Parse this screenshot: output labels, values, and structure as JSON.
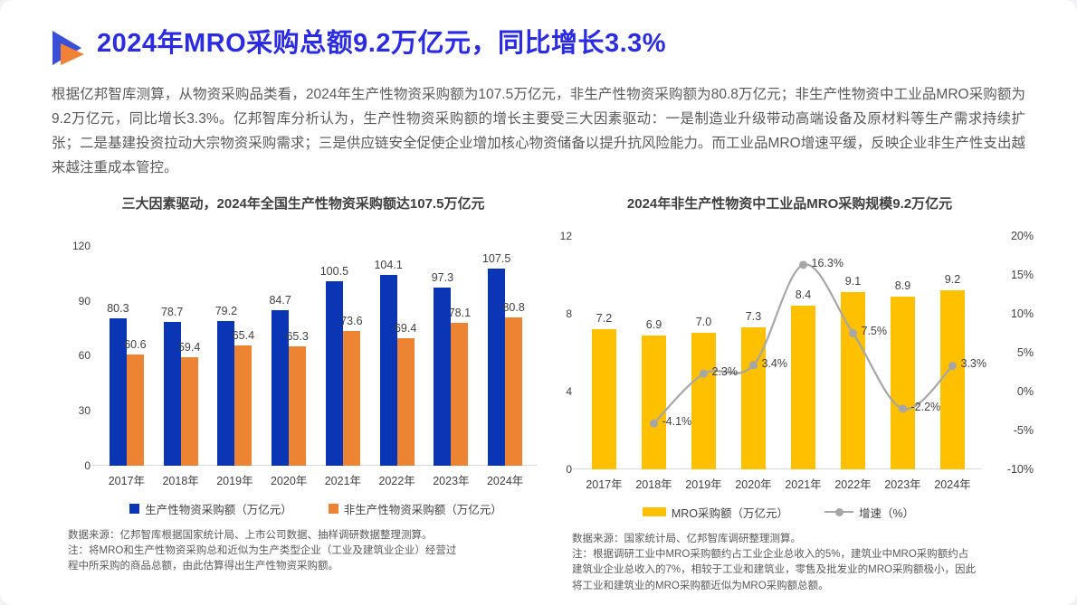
{
  "page": {
    "title": "2024年MRO采购总额9.2万亿元，同比增长3.3%",
    "paragraph": "根据亿邦智库测算，从物资采购品类看，2024年生产性物资采购额为107.5万亿元，非生产性物资采购额为80.8万亿元；非生产性物资中工业品MRO采购额为9.2万亿元，同比增长3.3%。亿邦智库分析认为，生产性物资采购额的增长主要受三大因素驱动：一是制造业升级带动高端设备及原材料等生产需求持续扩张；二是基建投资拉动大宗物资采购需求；三是供应链安全促使企业增加核心物资储备以提升抗风险能力。而工业品MRO增速平缓，反映企业非生产性支出越来越注重成本管控。"
  },
  "colors": {
    "title_blue": "#2B2BE2",
    "icon_blue": "#3A4FD8",
    "icon_orange": "#F08136",
    "bar_blue": "#0A35B5",
    "bar_orange": "#ED8434",
    "bar_yellow": "#FFC000",
    "line_gray": "#A6A6A6",
    "axis_line": "#D9D9D9"
  },
  "chart_data": [
    {
      "type": "bar",
      "title": "三大因素驱动，2024年全国生产性物资采购额达107.5万亿元",
      "categories": [
        "2017年",
        "2018年",
        "2019年",
        "2020年",
        "2021年",
        "2022年",
        "2023年",
        "2024年"
      ],
      "series": [
        {
          "name": "生产性物资采购额（万亿元）",
          "color": "#0A35B5",
          "values": [
            80.3,
            78.7,
            79.2,
            84.7,
            100.5,
            104.1,
            97.3,
            107.5
          ]
        },
        {
          "name": "非生产性物资采购额（万亿元）",
          "color": "#ED8434",
          "values": [
            60.6,
            59.4,
            65.4,
            65.3,
            73.6,
            69.4,
            78.1,
            80.8
          ]
        }
      ],
      "ylim": [
        0,
        120
      ],
      "yticks": [
        0,
        30,
        60,
        90,
        120
      ],
      "grid": false,
      "legend_position": "bottom",
      "source_note": "数据来源：亿邦智库根据国家统计局、上市公司数据、抽样调研数据整理测算。\n注：将MRO和生产性物资采购总和近似为生产类型企业（工业及建筑业企业）经营过\n程中所采购的商品总额，由此估算得出生产性物资采购额。"
    },
    {
      "type": "bar+line",
      "title": "2024年非生产性物资中工业品MRO采购规模9.2万亿元",
      "categories": [
        "2017年",
        "2018年",
        "2019年",
        "2020年",
        "2021年",
        "2022年",
        "2023年",
        "2024年"
      ],
      "bar_series": {
        "name": "MRO采购额（万亿元）",
        "color": "#FFC000",
        "values": [
          7.2,
          6.9,
          7.0,
          7.3,
          8.4,
          9.1,
          8.9,
          9.2
        ]
      },
      "line_series": {
        "name": "增速（%）",
        "color": "#A6A6A6",
        "values": [
          null,
          -4.1,
          2.3,
          3.4,
          16.3,
          7.5,
          -2.2,
          3.3
        ],
        "point_labels": [
          "",
          "-4.1%",
          "2.3%",
          "3.4%",
          "16.3%",
          "7.5%",
          "-2.2%",
          "3.3%"
        ]
      },
      "ylim_left": [
        0,
        12
      ],
      "yticks_left": [
        0,
        4,
        8,
        12
      ],
      "ylim_right": [
        -10,
        20
      ],
      "yticks_right": [
        "-10%",
        "-5%",
        "0%",
        "5%",
        "10%",
        "15%",
        "20%"
      ],
      "grid": false,
      "legend_position": "bottom",
      "source_note": "数据来源：国家统计局、亿邦智库调研整理测算。\n注：根据调研工业中MRO采购额约占工业企业总收入的5%，建筑业中MRO采购额约占\n建筑业企业总收入的7%，相较于工业和建筑业，零售及批发业的MRO采购额极小，因此\n将工业和建筑业的MRO采购额近似为MRO采购额总额。"
    }
  ]
}
